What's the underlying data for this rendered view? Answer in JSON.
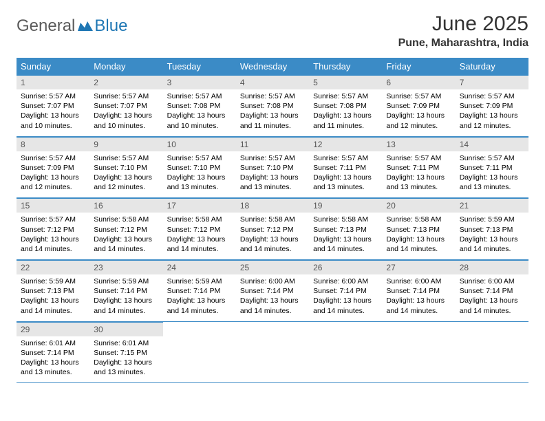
{
  "logo": {
    "word1": "General",
    "word2": "Blue"
  },
  "title": "June 2025",
  "subtitle": "Pune, Maharashtra, India",
  "colors": {
    "header_bg": "#3b8bc6",
    "header_text": "#ffffff",
    "daynum_bg": "#e6e6e6",
    "border": "#3b8bc6",
    "logo_gray": "#5a5a5a",
    "logo_blue": "#1f77b4"
  },
  "weekdays": [
    "Sunday",
    "Monday",
    "Tuesday",
    "Wednesday",
    "Thursday",
    "Friday",
    "Saturday"
  ],
  "days": [
    {
      "n": "1",
      "sr": "5:57 AM",
      "ss": "7:07 PM",
      "dl": "13 hours and 10 minutes."
    },
    {
      "n": "2",
      "sr": "5:57 AM",
      "ss": "7:07 PM",
      "dl": "13 hours and 10 minutes."
    },
    {
      "n": "3",
      "sr": "5:57 AM",
      "ss": "7:08 PM",
      "dl": "13 hours and 10 minutes."
    },
    {
      "n": "4",
      "sr": "5:57 AM",
      "ss": "7:08 PM",
      "dl": "13 hours and 11 minutes."
    },
    {
      "n": "5",
      "sr": "5:57 AM",
      "ss": "7:08 PM",
      "dl": "13 hours and 11 minutes."
    },
    {
      "n": "6",
      "sr": "5:57 AM",
      "ss": "7:09 PM",
      "dl": "13 hours and 12 minutes."
    },
    {
      "n": "7",
      "sr": "5:57 AM",
      "ss": "7:09 PM",
      "dl": "13 hours and 12 minutes."
    },
    {
      "n": "8",
      "sr": "5:57 AM",
      "ss": "7:09 PM",
      "dl": "13 hours and 12 minutes."
    },
    {
      "n": "9",
      "sr": "5:57 AM",
      "ss": "7:10 PM",
      "dl": "13 hours and 12 minutes."
    },
    {
      "n": "10",
      "sr": "5:57 AM",
      "ss": "7:10 PM",
      "dl": "13 hours and 13 minutes."
    },
    {
      "n": "11",
      "sr": "5:57 AM",
      "ss": "7:10 PM",
      "dl": "13 hours and 13 minutes."
    },
    {
      "n": "12",
      "sr": "5:57 AM",
      "ss": "7:11 PM",
      "dl": "13 hours and 13 minutes."
    },
    {
      "n": "13",
      "sr": "5:57 AM",
      "ss": "7:11 PM",
      "dl": "13 hours and 13 minutes."
    },
    {
      "n": "14",
      "sr": "5:57 AM",
      "ss": "7:11 PM",
      "dl": "13 hours and 13 minutes."
    },
    {
      "n": "15",
      "sr": "5:57 AM",
      "ss": "7:12 PM",
      "dl": "13 hours and 14 minutes."
    },
    {
      "n": "16",
      "sr": "5:58 AM",
      "ss": "7:12 PM",
      "dl": "13 hours and 14 minutes."
    },
    {
      "n": "17",
      "sr": "5:58 AM",
      "ss": "7:12 PM",
      "dl": "13 hours and 14 minutes."
    },
    {
      "n": "18",
      "sr": "5:58 AM",
      "ss": "7:12 PM",
      "dl": "13 hours and 14 minutes."
    },
    {
      "n": "19",
      "sr": "5:58 AM",
      "ss": "7:13 PM",
      "dl": "13 hours and 14 minutes."
    },
    {
      "n": "20",
      "sr": "5:58 AM",
      "ss": "7:13 PM",
      "dl": "13 hours and 14 minutes."
    },
    {
      "n": "21",
      "sr": "5:59 AM",
      "ss": "7:13 PM",
      "dl": "13 hours and 14 minutes."
    },
    {
      "n": "22",
      "sr": "5:59 AM",
      "ss": "7:13 PM",
      "dl": "13 hours and 14 minutes."
    },
    {
      "n": "23",
      "sr": "5:59 AM",
      "ss": "7:14 PM",
      "dl": "13 hours and 14 minutes."
    },
    {
      "n": "24",
      "sr": "5:59 AM",
      "ss": "7:14 PM",
      "dl": "13 hours and 14 minutes."
    },
    {
      "n": "25",
      "sr": "6:00 AM",
      "ss": "7:14 PM",
      "dl": "13 hours and 14 minutes."
    },
    {
      "n": "26",
      "sr": "6:00 AM",
      "ss": "7:14 PM",
      "dl": "13 hours and 14 minutes."
    },
    {
      "n": "27",
      "sr": "6:00 AM",
      "ss": "7:14 PM",
      "dl": "13 hours and 14 minutes."
    },
    {
      "n": "28",
      "sr": "6:00 AM",
      "ss": "7:14 PM",
      "dl": "13 hours and 14 minutes."
    },
    {
      "n": "29",
      "sr": "6:01 AM",
      "ss": "7:14 PM",
      "dl": "13 hours and 13 minutes."
    },
    {
      "n": "30",
      "sr": "6:01 AM",
      "ss": "7:15 PM",
      "dl": "13 hours and 13 minutes."
    }
  ],
  "labels": {
    "sunrise": "Sunrise: ",
    "sunset": "Sunset: ",
    "daylight": "Daylight: "
  }
}
